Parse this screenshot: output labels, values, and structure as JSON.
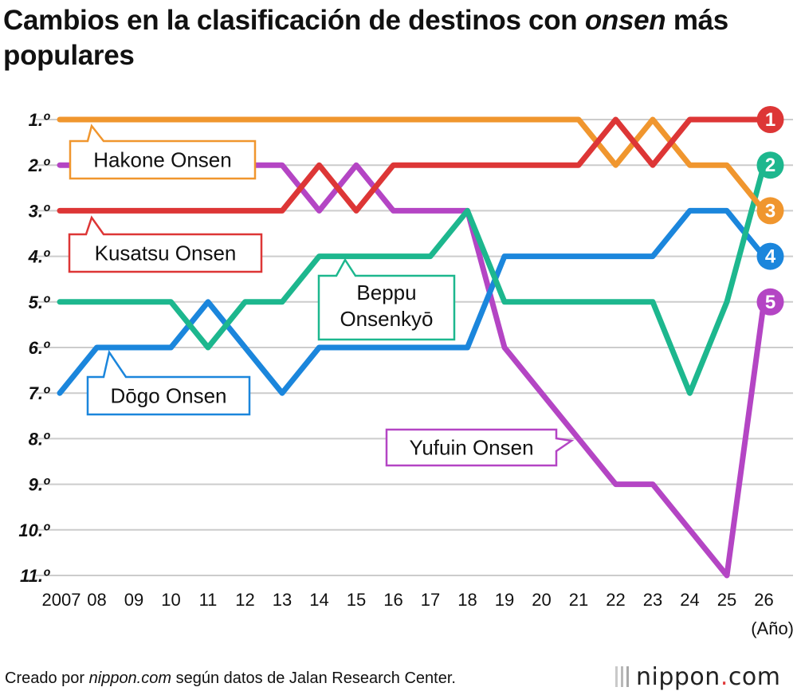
{
  "title_parts": [
    "Cambios en la clasificación de destinos con ",
    "onsen",
    " más populares"
  ],
  "footer": {
    "credit_prefix": "Creado por ",
    "credit_link": "nippon.com",
    "credit_suffix": " según datos de Jalan Research Center.",
    "logo_text": "nippon",
    "logo_dot": ".",
    "logo_tld": "com"
  },
  "colors": {
    "hakone": "#f0962e",
    "kusatsu": "#dd3636",
    "beppu": "#1db78e",
    "dogo": "#1b86dc",
    "yufuin": "#b445c4",
    "grid": "#cccccc"
  },
  "chart_data": {
    "type": "line",
    "x": [
      "2007",
      "08",
      "09",
      "10",
      "11",
      "12",
      "13",
      "14",
      "15",
      "16",
      "17",
      "18",
      "19",
      "20",
      "21",
      "22",
      "23",
      "24",
      "25",
      "26"
    ],
    "x_unit": "(Año)",
    "y_ticks": [
      "1.º",
      "2.º",
      "3.º",
      "4.º",
      "5.º",
      "6.º",
      "7.º",
      "8.º",
      "9.º",
      "10.º",
      "11.º"
    ],
    "y_range": [
      1,
      11
    ],
    "y_inverted": true,
    "grid": true,
    "series": [
      {
        "key": "hakone",
        "name": "Hakone Onsen",
        "values": [
          1,
          1,
          1,
          1,
          1,
          1,
          1,
          1,
          1,
          1,
          1,
          1,
          1,
          1,
          1,
          2,
          1,
          2,
          2,
          3
        ],
        "final_rank": "3"
      },
      {
        "key": "kusatsu",
        "name": "Kusatsu Onsen",
        "values": [
          3,
          3,
          3,
          3,
          3,
          3,
          3,
          2,
          3,
          2,
          2,
          2,
          2,
          2,
          2,
          1,
          2,
          1,
          1,
          1
        ],
        "final_rank": "1"
      },
      {
        "key": "beppu",
        "name": "Beppu Onsenkyō",
        "values": [
          5,
          5,
          5,
          5,
          6,
          5,
          5,
          4,
          4,
          4,
          4,
          3,
          5,
          5,
          5,
          5,
          5,
          7,
          5,
          2
        ],
        "final_rank": "2"
      },
      {
        "key": "dogo",
        "name": "Dōgo Onsen",
        "values": [
          7,
          6,
          6,
          6,
          5,
          6,
          7,
          6,
          6,
          6,
          6,
          6,
          4,
          4,
          4,
          4,
          4,
          3,
          3,
          4
        ],
        "final_rank": "4"
      },
      {
        "key": "yufuin",
        "name": "Yufuin Onsen",
        "values": [
          2,
          2,
          2,
          2,
          2,
          2,
          2,
          3,
          2,
          3,
          3,
          3,
          6,
          7,
          8,
          9,
          9,
          10,
          11,
          5
        ],
        "final_rank": "5"
      }
    ],
    "labels": [
      {
        "series": "hakone",
        "lines": [
          "Hakone Onsen"
        ]
      },
      {
        "series": "kusatsu",
        "lines": [
          "Kusatsu Onsen"
        ]
      },
      {
        "series": "beppu",
        "lines": [
          "Beppu",
          "Onsenkyō"
        ]
      },
      {
        "series": "dogo",
        "lines": [
          "Dōgo Onsen"
        ]
      },
      {
        "series": "yufuin",
        "lines": [
          "Yufuin Onsen"
        ]
      }
    ]
  }
}
